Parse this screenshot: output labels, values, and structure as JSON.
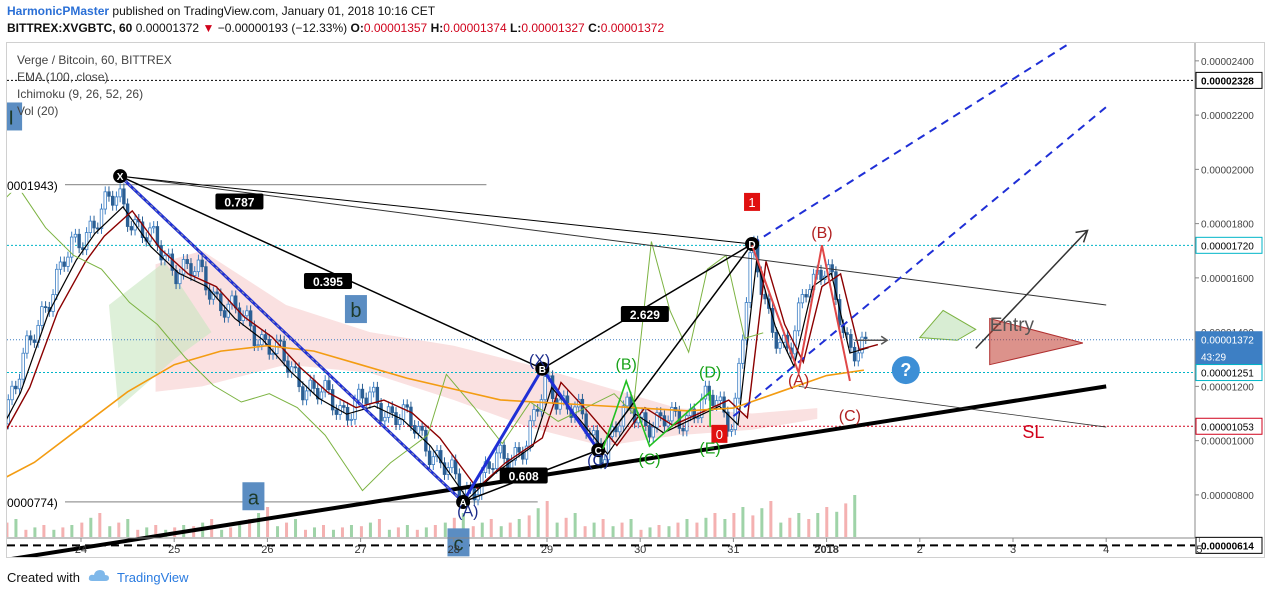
{
  "header": {
    "author": "HarmonicPMaster",
    "published": "published on TradingView.com, January 01, 2018 10:16 CET",
    "symbol": "BITTREX:XVGBTC, 60",
    "last": "0.00001372",
    "arrow": "▼",
    "change": "−0.00000193 (−12.33%)",
    "o_label": "O:",
    "o": "0.00001357",
    "h_label": "H:",
    "h": "0.00001374",
    "l_label": "L:",
    "l": "0.00001327",
    "c_label": "C:",
    "c": "0.00001372"
  },
  "indicators": [
    "Verge / Bitcoin, 60, BITTREX",
    "EMA (100, close)",
    "Ichimoku (9, 26, 52, 26)",
    "Vol (20)"
  ],
  "footer": {
    "created": "Created with",
    "brand": "TradingView"
  },
  "colors": {
    "up": "#3d7fc4",
    "ema": "#f39c12",
    "kijun": "#8b0000",
    "tenkan": "#000000",
    "chikou": "#7cb342",
    "pattern": "#1f2fd6",
    "green": "#1aa31a",
    "red": "#c0392b",
    "sl": "#d0021b",
    "cyan": "#00b5c8"
  },
  "chart_data": {
    "type": "line",
    "title": "Verge / Bitcoin, 60, BITTREX",
    "xlabel": "",
    "ylabel": "",
    "x_ticks": [
      "24",
      "25",
      "26",
      "27",
      "28",
      "29",
      "30",
      "31",
      "2018",
      "2",
      "3",
      "4",
      "5"
    ],
    "y_ticks": [
      "0.00002400",
      "0.00002200",
      "0.00002000",
      "0.00001800",
      "0.00001600",
      "0.00001400",
      "0.00001200",
      "0.00001000",
      "0.00000800"
    ],
    "ylim": [
      5.6e-06,
      2.44e-05
    ],
    "price_tags": [
      {
        "label": "0.00002328",
        "value": 2.328e-05,
        "style": "black-dashed"
      },
      {
        "label": "0.00001720",
        "value": 1.72e-05,
        "style": "cyan-dotted"
      },
      {
        "label": "0.00001372",
        "value": 1.372e-05,
        "style": "current"
      },
      {
        "label": "43:29",
        "value": 1.311e-05,
        "style": "countdown"
      },
      {
        "label": "0.00001251",
        "value": 1.251e-05,
        "style": "cyan-dotted"
      },
      {
        "label": "0.00001053",
        "value": 1.053e-05,
        "style": "red-dotted"
      },
      {
        "label": "0.00000614",
        "value": 6.14e-06,
        "style": "black-dashed"
      }
    ],
    "left_labels": [
      {
        "label": "0001943)",
        "value": 1.943e-05
      },
      {
        "label": "0000774)",
        "value": 7.74e-06
      }
    ],
    "close_series": {
      "name": "Verge / Bitcoin",
      "x": [
        23.0,
        23.3,
        23.6,
        23.9,
        24.1,
        24.4,
        24.7,
        25.0,
        25.3,
        25.6,
        25.9,
        26.2,
        26.5,
        26.8,
        27.1,
        27.4,
        27.7,
        28.0,
        28.1,
        28.4,
        28.8,
        29.0,
        29.3,
        29.6,
        29.9,
        30.2,
        30.5,
        30.8,
        31.0,
        31.2,
        31.4,
        31.6,
        31.8,
        32.0,
        32.2,
        32.4
      ],
      "y": [
        1e-05,
        1.2e-05,
        1.5e-05,
        1.7e-05,
        1.8e-05,
        1.9e-05,
        1.75e-05,
        1.65e-05,
        1.6e-05,
        1.48e-05,
        1.4e-05,
        1.28e-05,
        1.18e-05,
        1.12e-05,
        1.15e-05,
        1.1e-05,
        1e-05,
        8.5e-06,
        8e-06,
        9e-06,
        1e-05,
        1.22e-05,
        1.1e-05,
        9.7e-06,
        1.12e-05,
        1.05e-05,
        1.1e-05,
        1.15e-05,
        1.08e-05,
        1.7e-05,
        1.45e-05,
        1.3e-05,
        1.6e-05,
        1.65e-05,
        1.35e-05,
        1.37e-05
      ]
    },
    "ema_100": {
      "name": "EMA (100, close)",
      "x": [
        23.0,
        23.5,
        24.0,
        24.5,
        25.0,
        25.5,
        26.0,
        26.5,
        27.0,
        27.5,
        28.0,
        28.5,
        29.0,
        29.5,
        30.0,
        30.5,
        31.0,
        31.5,
        32.0,
        32.4
      ],
      "y": [
        8.3e-06,
        9.2e-06,
        1.05e-05,
        1.18e-05,
        1.28e-05,
        1.33e-05,
        1.35e-05,
        1.33e-05,
        1.28e-05,
        1.23e-05,
        1.19e-05,
        1.15e-05,
        1.14e-05,
        1.13e-05,
        1.12e-05,
        1.11e-05,
        1.12e-05,
        1.18e-05,
        1.24e-05,
        1.26e-05
      ]
    },
    "volume": {
      "name": "Vol (20)",
      "x": [
        23.2,
        23.5,
        23.8,
        24.1,
        24.4,
        24.7,
        25.0,
        25.3,
        25.6,
        25.9,
        26.2,
        26.5,
        26.8,
        27.1,
        27.4,
        27.7,
        28.0,
        28.3,
        28.6,
        28.9,
        29.2,
        29.5,
        29.8,
        30.1,
        30.4,
        30.7,
        31.0,
        31.3,
        31.6,
        31.9,
        32.2
      ],
      "y": [
        3,
        2,
        2,
        4,
        3,
        2,
        2,
        3,
        2,
        5,
        3,
        2,
        2,
        3,
        2,
        2,
        4,
        3,
        3,
        6,
        4,
        3,
        3,
        2,
        3,
        4,
        5,
        6,
        4,
        5,
        7
      ]
    },
    "harmonic_points": [
      {
        "label": "X",
        "x": 24.42,
        "y": 1.975e-05
      },
      {
        "label": "A",
        "x": 28.1,
        "y": 7.74e-06
      },
      {
        "label": "B",
        "x": 28.95,
        "y": 1.265e-05
      },
      {
        "label": "C",
        "x": 29.55,
        "y": 9.65e-06
      },
      {
        "label": "D",
        "x": 31.2,
        "y": 1.725e-05
      }
    ],
    "ratios": [
      {
        "label": "0.787",
        "x": 25.7,
        "y": 1.878e-05
      },
      {
        "label": "0.395",
        "x": 26.65,
        "y": 1.585e-05
      },
      {
        "label": "0.608",
        "x": 28.75,
        "y": 8.68e-06
      },
      {
        "label": "2.629",
        "x": 30.05,
        "y": 1.463e-05
      }
    ],
    "wave_labels": [
      {
        "label": "I",
        "x": 23.25,
        "y": 2.195e-05,
        "box": "blue"
      },
      {
        "label": "a",
        "x": 25.85,
        "y": 7.95e-06,
        "box": "blue"
      },
      {
        "label": "b",
        "x": 26.95,
        "y": 1.485e-05,
        "box": "blue"
      },
      {
        "label": "c",
        "x": 28.05,
        "y": 6.25e-06,
        "box": "blue"
      },
      {
        "label": "(A)",
        "x": 28.15,
        "y": 7.42e-06,
        "color": "navy"
      },
      {
        "label": "(X)",
        "x": 28.92,
        "y": 1.3e-05,
        "color": "navy"
      },
      {
        "label": "(C)",
        "x": 29.55,
        "y": 9.3e-06,
        "color": "navy"
      },
      {
        "label": "(B)",
        "x": 29.85,
        "y": 1.285e-05,
        "color": "green"
      },
      {
        "label": "(C)",
        "x": 30.1,
        "y": 9.35e-06,
        "color": "green"
      },
      {
        "label": "(D)",
        "x": 30.75,
        "y": 1.255e-05,
        "color": "green"
      },
      {
        "label": "(E)",
        "x": 30.75,
        "y": 9.75e-06,
        "color": "green"
      },
      {
        "label": "(B)",
        "x": 31.95,
        "y": 1.77e-05,
        "color": "red"
      },
      {
        "label": "(A)",
        "x": 31.7,
        "y": 1.225e-05,
        "color": "red"
      },
      {
        "label": "(C)",
        "x": 32.25,
        "y": 1.095e-05,
        "color": "red"
      },
      {
        "label": "1",
        "x": 31.2,
        "y": 1.88e-05,
        "box": "red"
      },
      {
        "label": "0",
        "x": 30.85,
        "y": 1.025e-05,
        "box": "red"
      }
    ],
    "text_labels": [
      {
        "label": "Entry",
        "x": 33.75,
        "y": 1.43e-05
      },
      {
        "label": "SL",
        "x": 34.1,
        "y": 1.035e-05
      }
    ],
    "trendlines": [
      {
        "name": "support",
        "x": [
          23.0,
          35.0
        ],
        "y": [
          5.5e-06,
          1.2e-05
        ]
      },
      {
        "name": "resistance",
        "x": [
          24.42,
          35.0
        ],
        "y": [
          1.975e-05,
          1.5e-05
        ]
      },
      {
        "name": "lower",
        "x": [
          31.7,
          35.0
        ],
        "y": [
          1.2e-05,
          1.05e-05
        ]
      },
      {
        "name": "channel1",
        "x": [
          31.2,
          35.0
        ],
        "y": [
          1.725e-05,
          2.55e-05
        ]
      },
      {
        "name": "channel2",
        "x": [
          31.0,
          35.0
        ],
        "y": [
          1.09e-05,
          2.23e-05
        ]
      },
      {
        "name": "projection",
        "x": [
          33.6,
          34.8
        ],
        "y": [
          1.34e-05,
          1.775e-05
        ]
      }
    ]
  }
}
